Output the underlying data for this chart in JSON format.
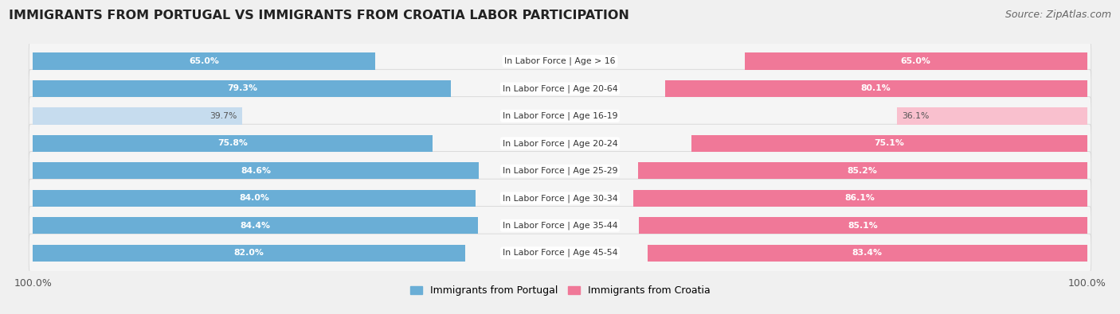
{
  "title": "IMMIGRANTS FROM PORTUGAL VS IMMIGRANTS FROM CROATIA LABOR PARTICIPATION",
  "source": "Source: ZipAtlas.com",
  "categories": [
    "In Labor Force | Age > 16",
    "In Labor Force | Age 20-64",
    "In Labor Force | Age 16-19",
    "In Labor Force | Age 20-24",
    "In Labor Force | Age 25-29",
    "In Labor Force | Age 30-34",
    "In Labor Force | Age 35-44",
    "In Labor Force | Age 45-54"
  ],
  "portugal_values": [
    65.0,
    79.3,
    39.7,
    75.8,
    84.6,
    84.0,
    84.4,
    82.0
  ],
  "croatia_values": [
    65.0,
    80.1,
    36.1,
    75.1,
    85.2,
    86.1,
    85.1,
    83.4
  ],
  "portugal_color": "#6aaed6",
  "portugal_color_light": "#c6dcee",
  "croatia_color": "#f07898",
  "croatia_color_light": "#f9c0ce",
  "max_value": 100.0,
  "background_color": "#f0f0f0",
  "row_background_color": "#e8e8e8",
  "bar_row_bg": "#f8f8f8",
  "title_fontsize": 11.5,
  "source_fontsize": 9,
  "legend_fontsize": 9,
  "label_fontsize": 7.8,
  "value_fontsize": 7.8
}
